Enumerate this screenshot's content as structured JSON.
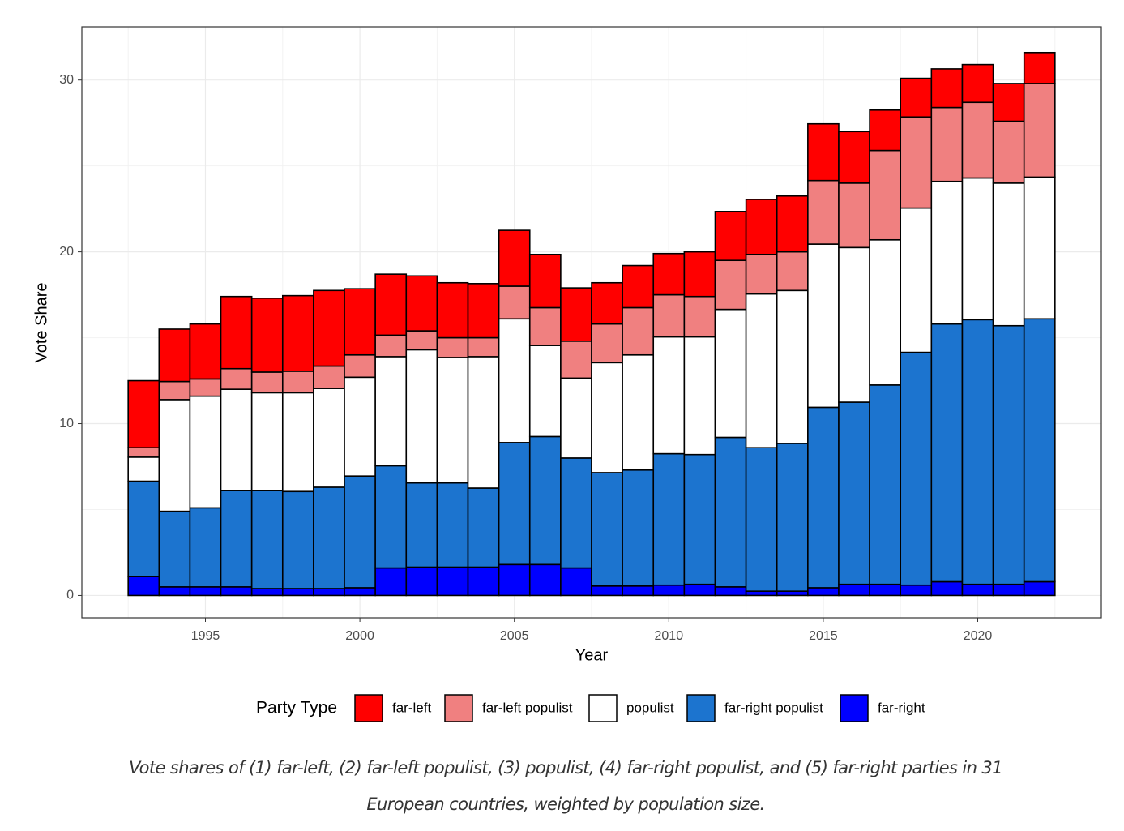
{
  "chart_data": {
    "type": "bar",
    "stacked": true,
    "x_label": "Year",
    "y_label": "Vote Share",
    "legend_title": "Party Type",
    "legend_position": "bottom",
    "grid": true,
    "x": [
      1993,
      1994,
      1995,
      1996,
      1997,
      1998,
      1999,
      2000,
      2001,
      2002,
      2003,
      2004,
      2005,
      2006,
      2007,
      2008,
      2009,
      2010,
      2011,
      2012,
      2013,
      2014,
      2015,
      2016,
      2017,
      2018,
      2019,
      2020,
      2021,
      2022
    ],
    "xlim": [
      1991,
      2024
    ],
    "xticks": [
      1995,
      2000,
      2005,
      2010,
      2015,
      2020
    ],
    "ylim": [
      -1.3,
      33.1
    ],
    "yticks": [
      0,
      10,
      20,
      30
    ],
    "series": [
      {
        "name": "far-left",
        "color": "#ff0000",
        "values": [
          3.9,
          3.05,
          3.2,
          4.2,
          4.3,
          4.4,
          4.4,
          3.85,
          3.55,
          3.2,
          3.2,
          3.15,
          3.25,
          3.1,
          3.1,
          2.4,
          2.45,
          2.4,
          2.6,
          2.85,
          3.2,
          3.25,
          3.3,
          3.0,
          2.35,
          2.25,
          2.25,
          2.2,
          2.2,
          1.8
        ]
      },
      {
        "name": "far-left populist",
        "color": "#f08080",
        "values": [
          0.55,
          1.05,
          1.0,
          1.2,
          1.2,
          1.25,
          1.3,
          1.3,
          1.25,
          1.1,
          1.15,
          1.1,
          1.9,
          2.2,
          2.15,
          2.25,
          2.75,
          2.45,
          2.35,
          2.85,
          2.3,
          2.25,
          3.7,
          3.75,
          5.2,
          5.3,
          4.3,
          4.4,
          3.6,
          5.45
        ]
      },
      {
        "name": "populist",
        "color": "#ffffff",
        "values": [
          1.4,
          6.5,
          6.5,
          5.9,
          5.7,
          5.75,
          5.75,
          5.75,
          6.35,
          7.75,
          7.3,
          7.65,
          7.2,
          5.3,
          4.65,
          6.4,
          6.7,
          6.8,
          6.85,
          7.45,
          8.95,
          8.9,
          9.5,
          9.0,
          8.45,
          8.4,
          8.3,
          8.25,
          8.3,
          8.25
        ]
      },
      {
        "name": "far-right populist",
        "color": "#1c74cf",
        "values": [
          5.55,
          4.4,
          4.6,
          5.6,
          5.7,
          5.65,
          5.9,
          6.5,
          5.95,
          4.9,
          4.9,
          4.6,
          7.1,
          7.45,
          6.4,
          6.6,
          6.75,
          7.65,
          7.55,
          8.7,
          8.35,
          8.6,
          10.5,
          10.6,
          11.6,
          13.55,
          15.0,
          15.4,
          15.05,
          15.3
        ]
      },
      {
        "name": "far-right",
        "color": "#0000ff",
        "values": [
          1.1,
          0.5,
          0.5,
          0.5,
          0.4,
          0.4,
          0.4,
          0.45,
          1.6,
          1.65,
          1.65,
          1.65,
          1.8,
          1.8,
          1.6,
          0.55,
          0.55,
          0.6,
          0.65,
          0.5,
          0.25,
          0.25,
          0.45,
          0.65,
          0.65,
          0.6,
          0.8,
          0.65,
          0.65,
          0.8
        ]
      }
    ]
  },
  "caption": "Vote shares of (1) far-left, (2) far-left populist, (3) populist, (4) far-right populist, and (5) far-right parties in 31 European countries, weighted by population size."
}
